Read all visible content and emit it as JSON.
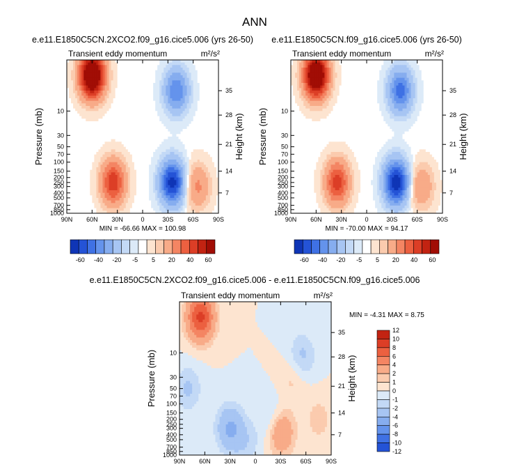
{
  "figure": {
    "title": "ANN"
  },
  "colors": {
    "pos": [
      "#fde4d0",
      "#fbcbae",
      "#f8ab88",
      "#f48563",
      "#ec6040",
      "#dc3e26",
      "#c22312",
      "#a10d05",
      "#800000"
    ],
    "neg": [
      "#dceaf8",
      "#c3d9f6",
      "#a7c5f3",
      "#86adef",
      "#6493ec",
      "#3f71e4",
      "#2453d6",
      "#0f35b6",
      "#000a8a"
    ]
  },
  "chart_data": [
    {
      "id": "top-left",
      "type": "contour",
      "title": "e.e11.E1850C5CN.2XCO2.f09_g16.cice5.006 (yrs 26-50)",
      "label_left": "Transient eddy momentum",
      "units": "m²/s²",
      "ylabel": "Pressure (mb)",
      "ylabel_right": "Height (km)",
      "x_ticks": [
        "90N",
        "60N",
        "30N",
        "0",
        "30S",
        "60S",
        "90S"
      ],
      "y_ticks": [
        "10",
        "30",
        "50",
        "70",
        "100",
        "150",
        "200",
        "250",
        "300",
        "400",
        "500",
        "700",
        "850",
        "1000"
      ],
      "y_ticks_right": [
        "35",
        "28",
        "21",
        "14",
        "7"
      ],
      "stats": "MIN = -66.66  MAX = 100.98",
      "levels": [
        -60,
        -50,
        -40,
        -30,
        -20,
        -10,
        -5,
        -1,
        1,
        5,
        10,
        20,
        30,
        40,
        50,
        60
      ],
      "colorbar_labels": [
        "-60",
        "-40",
        "-20",
        "-5",
        "5",
        "20",
        "40",
        "60"
      ],
      "features": [
        {
          "lat": 60,
          "p": 2,
          "value": 95
        },
        {
          "lat": -35,
          "p": 250,
          "value": -66
        },
        {
          "lat": 35,
          "p": 250,
          "value": 48
        },
        {
          "lat": -65,
          "p": 300,
          "value": 22
        },
        {
          "lat": -40,
          "p": 4,
          "value": -40
        }
      ]
    },
    {
      "id": "top-right",
      "type": "contour",
      "title": "e.e11.E1850C5CN.f09_g16.cice5.006 (yrs 26-50)",
      "label_left": "Transient eddy momentum",
      "units": "m²/s²",
      "ylabel": "Pressure (mb)",
      "ylabel_right": "Height (km)",
      "x_ticks": [
        "90N",
        "60N",
        "30N",
        "0",
        "30S",
        "60S",
        "90S"
      ],
      "y_ticks": [
        "10",
        "30",
        "50",
        "70",
        "100",
        "150",
        "200",
        "250",
        "300",
        "400",
        "500",
        "700",
        "850",
        "1000"
      ],
      "y_ticks_right": [
        "35",
        "28",
        "21",
        "14",
        "7"
      ],
      "stats": "MIN = -70.00  MAX = 94.17",
      "levels": [
        -60,
        -50,
        -40,
        -30,
        -20,
        -10,
        -5,
        -1,
        1,
        5,
        10,
        20,
        30,
        40,
        50,
        60
      ],
      "colorbar_labels": [
        "-60",
        "-40",
        "-20",
        "-5",
        "5",
        "20",
        "40",
        "60"
      ],
      "features": [
        {
          "lat": 60,
          "p": 2,
          "value": 90
        },
        {
          "lat": -35,
          "p": 250,
          "value": -70
        },
        {
          "lat": 35,
          "p": 250,
          "value": 45
        },
        {
          "lat": -65,
          "p": 300,
          "value": 20
        },
        {
          "lat": -40,
          "p": 4,
          "value": -45
        }
      ]
    },
    {
      "id": "difference",
      "type": "contour",
      "title": "e.e11.E1850C5CN.2XCO2.f09_g16.cice5.006 - e.e11.E1850C5CN.f09_g16.cice5.006",
      "label_left": "Transient eddy momentum",
      "units": "m²/s²",
      "ylabel": "Pressure (mb)",
      "ylabel_right": "Height (km)",
      "x_ticks": [
        "90N",
        "60N",
        "30N",
        "0",
        "30S",
        "60S",
        "90S"
      ],
      "y_ticks": [
        "10",
        "30",
        "50",
        "70",
        "100",
        "150",
        "200",
        "250",
        "300",
        "400",
        "500",
        "700",
        "850",
        "1000"
      ],
      "y_ticks_right": [
        "35",
        "28",
        "21",
        "14",
        "7"
      ],
      "stats": "MIN = -4.31  MAX =  8.75",
      "levels": [
        -12,
        -10,
        -8,
        -6,
        -4,
        -2,
        -1,
        0,
        1,
        2,
        4,
        6,
        8,
        10,
        12
      ],
      "colorbar_labels": [
        "12",
        "10",
        "8",
        "6",
        "4",
        "2",
        "1",
        "0",
        "-1",
        "-2",
        "-4",
        "-6",
        "-8",
        "-10",
        "-12"
      ],
      "features": [
        {
          "lat": 65,
          "p": 2,
          "value": 8.5
        },
        {
          "lat": 30,
          "p": 300,
          "value": -4.3
        },
        {
          "lat": -30,
          "p": 350,
          "value": 4.5
        },
        {
          "lat": 80,
          "p": 50,
          "value": -2.2
        },
        {
          "lat": -55,
          "p": 12,
          "value": -2.5
        },
        {
          "lat": -45,
          "p": 30,
          "value": 1.5
        },
        {
          "lat": -20,
          "p": 200,
          "value": -2
        },
        {
          "lat": -75,
          "p": 200,
          "value": 1.5
        },
        {
          "lat": 10,
          "p": 600,
          "value": -1.5
        }
      ]
    }
  ]
}
